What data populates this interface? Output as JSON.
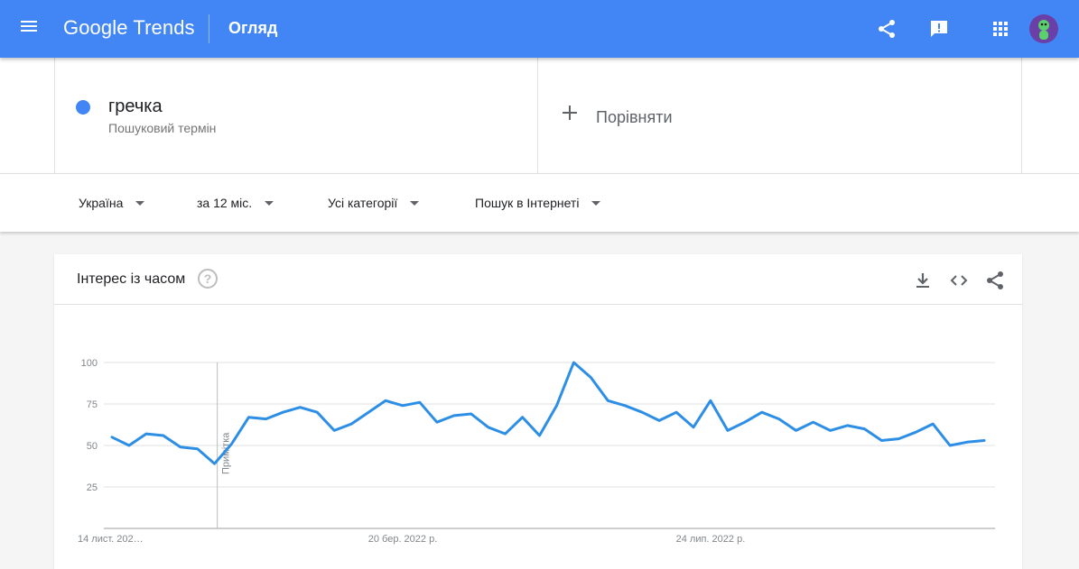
{
  "header": {
    "logo_google": "Google",
    "logo_trends": "Trends",
    "page_title": "Огляд",
    "icons": [
      "menu-icon",
      "share-icon",
      "feedback-icon",
      "apps-icon",
      "avatar"
    ]
  },
  "search": {
    "term": "гречка",
    "term_type": "Пошуковий термін",
    "compare_label": "Порівняти",
    "term_color": "#4285f4"
  },
  "filters": {
    "region": "Україна",
    "period": "за 12 міс.",
    "category": "Усі категорії",
    "search_type": "Пошук в Інтернеті"
  },
  "card": {
    "title": "Інтерес із часом",
    "help_symbol": "?",
    "icons": [
      "download-icon",
      "embed-icon",
      "share-icon"
    ]
  },
  "chart_data": {
    "type": "line",
    "title": "",
    "xlabel": "",
    "ylabel": "",
    "ylim": [
      0,
      100
    ],
    "yticks": [
      25,
      50,
      75,
      100
    ],
    "grid": true,
    "x_tick_labels": [
      "14 лист. 202…",
      "20 бер. 2022 р.",
      "24 лип. 2022 р."
    ],
    "x_tick_points": [
      0,
      17,
      35
    ],
    "note_label": "Примітка",
    "note_point": 6,
    "line_color": "#2d8ee6",
    "series": [
      {
        "values": [
          55,
          50,
          57,
          56,
          49,
          48,
          39,
          51,
          67,
          66,
          70,
          73,
          70,
          59,
          63,
          70,
          77,
          74,
          76,
          64,
          68,
          69,
          61,
          57,
          67,
          56,
          74,
          100,
          91,
          77,
          74,
          70,
          65,
          70,
          61,
          77,
          59,
          64,
          70,
          66,
          59,
          64,
          59,
          62,
          60,
          53,
          54,
          58,
          63,
          50,
          52,
          53
        ]
      }
    ]
  }
}
